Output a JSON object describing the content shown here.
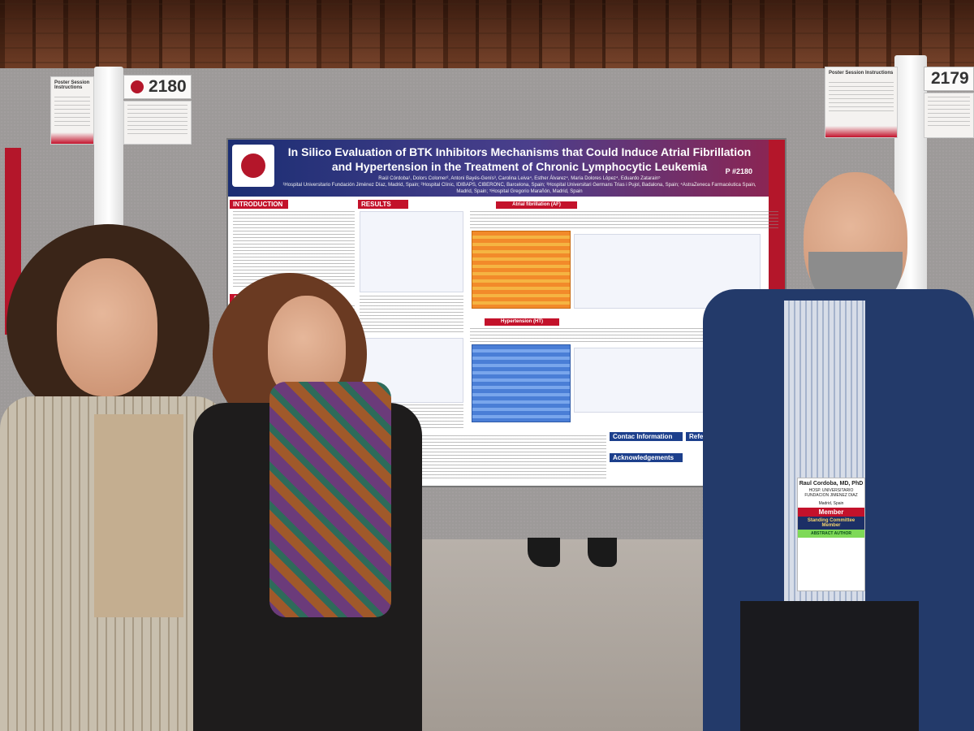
{
  "scene": {
    "cards": {
      "left_number": "2180",
      "left_title": "Poster Session Instructions",
      "right_number": "2179",
      "right_title": "Poster Session Instructions"
    },
    "poster": {
      "title_line1": "In Silico Evaluation of BTK Inhibitors Mechanisms that Could Induce Atrial Fibrillation",
      "title_line2": "and Hypertension in the Treatment of Chronic Lymphocytic Leukemia",
      "authors": "Raúl Córdoba¹, Dolors Colomer², Antoni Bayés-Genís³, Carolina Leiva⁴, Esther Álvarez⁴, María Dolores López⁴, Eduardo Zatarain⁵",
      "affiliations": "¹Hospital Universitario Fundación Jiménez Díaz, Madrid, Spain; ²Hospital Clínic, IDIBAPS, CIBERONC, Barcelona, Spain; ³Hospital Universitari Germans Trias i Pujol, Badalona, Spain; ⁴AstraZeneca Farmacéutica Spain, Madrid, Spain; ⁵Hospital Gregorio Marañón, Madrid, Spain",
      "poster_number": "P #2180",
      "sections": {
        "introduction": "INTRODUCTION",
        "results": "RESULTS",
        "aim": "AIM",
        "atrial_fibrillation": "Atrial fibrillation (AF)",
        "hypertension": "Hypertension (HT)",
        "contact": "Contac Information",
        "acknowledgements": "Acknowledgements",
        "references": "Refer"
      }
    },
    "badge": {
      "name": "Raul Cordoba, MD, PhD",
      "org": "HOSP. UNIVERSITARIO FUNDACION JIMENEZ DIAZ",
      "city": "Madrid, Spain",
      "member": "Member",
      "committee": "Standing Committee Member",
      "ribbon": "ABSTRACT AUTHOR"
    }
  }
}
